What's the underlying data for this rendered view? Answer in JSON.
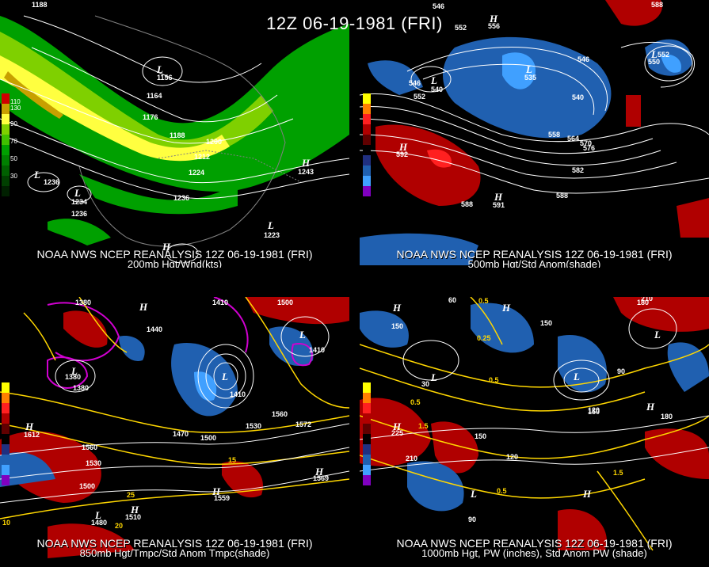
{
  "title": "12Z 06-19-1981 (FRI)",
  "panels": [
    {
      "id": "p1",
      "line1": "NOAA NWS NCEP REANALYSIS 12Z 06-19-1981 (FRI)",
      "line2": "200mb Hgt/Wnd(kts)",
      "legend": [
        "110",
        "130",
        "90",
        "70",
        "50",
        "30"
      ],
      "labels": [
        "1188",
        "1164",
        "1176",
        "1188",
        "1200",
        "1212",
        "1224",
        "1236",
        "1236",
        "1236",
        "1156",
        "1243",
        "1223",
        "1234"
      ]
    },
    {
      "id": "p2",
      "line1": "NOAA NWS NCEP REANALYSIS 12Z 06-19-1981 (FRI)",
      "line2": "500mb Hgt/Std Anom(shade)",
      "legend": [
        "5",
        "4",
        "3",
        "2",
        "1",
        "0",
        "1",
        "2",
        "3",
        "4",
        "5"
      ],
      "labels": [
        "546",
        "552",
        "556",
        "588",
        "546",
        "552",
        "540",
        "535",
        "540",
        "546",
        "558",
        "564",
        "570",
        "576",
        "582",
        "588",
        "588",
        "592",
        "591",
        "550",
        "552"
      ]
    },
    {
      "id": "p3",
      "line1": "NOAA NWS NCEP REANALYSIS 12Z 06-19-1981 (FRI)",
      "line2": "850mb Hgt/Tmpc/Std Anom Tmpc(shade)",
      "legend": [
        "5",
        "4",
        "3",
        "2",
        "1",
        "0",
        "1",
        "2",
        "3",
        "4",
        "5"
      ],
      "labels": [
        "1380",
        "1410",
        "1500",
        "1440",
        "1410",
        "1380",
        "1380",
        "1410",
        "1470",
        "1500",
        "1530",
        "1560",
        "1560",
        "1530",
        "1500",
        "1572",
        "1569",
        "1559",
        "1480",
        "1510",
        "1612",
        "10",
        "15",
        "20",
        "25"
      ]
    },
    {
      "id": "p4",
      "line1": "NOAA NWS NCEP REANALYSIS 12Z 06-19-1981 (FRI)",
      "line2": "1000mb Hgt, PW (inches), Std Anom PW (shade)",
      "legend": [
        "5",
        "4",
        "3",
        "2",
        "1",
        "0",
        "1",
        "2",
        "3",
        "4",
        "5"
      ],
      "labels": [
        "60",
        "0.5",
        "150",
        "180",
        "210",
        "30",
        "90",
        "0.25",
        "0.5",
        "150",
        "120",
        "150",
        "225",
        "1.5",
        "210",
        "150",
        "120",
        "0.5",
        "1.5",
        "90",
        "0.5",
        "180"
      ]
    }
  ],
  "colors": {
    "wind_light": "#00a000",
    "wind_mid": "#7fd000",
    "wind_high": "#ffff40",
    "wind_max": "#c8a000",
    "anom_pos": "#b00000",
    "anom_pos2": "#ff2020",
    "anom_neg": "#2060b0",
    "anom_neg2": "#40a0ff",
    "contour": "#ffffff",
    "temp_contour": "#ffd700",
    "cold_contour": "#d000d0"
  }
}
